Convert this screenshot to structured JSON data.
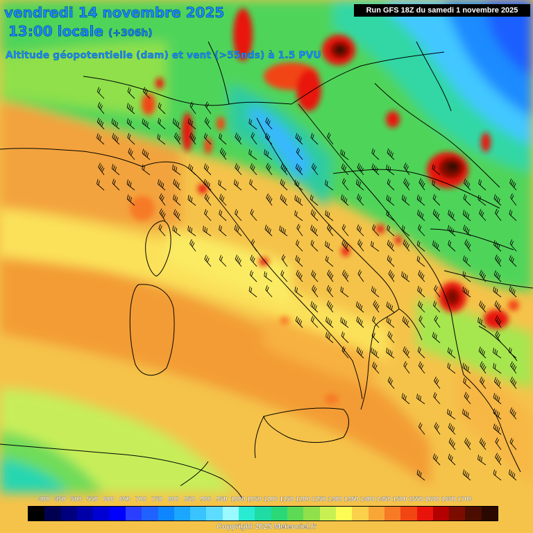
{
  "header": {
    "title_line1": "vendredi 14 novembre 2025",
    "title_line2": "13:00 locale",
    "lead_time": "(+306h)",
    "subtitle": "Altitude géopotentielle (dam) et vent (>55nds) à 1.5 PVU",
    "run_info": "Run GFS 18Z du samedi 1 novembre 2025"
  },
  "legend": {
    "labels": [
      "400",
      "450",
      "500",
      "550",
      "600",
      "650",
      "700",
      "750",
      "800",
      "850",
      "900",
      "950",
      "1000",
      "1050",
      "1100",
      "1150",
      "1200",
      "1250",
      "1300",
      "1350",
      "1400",
      "1450",
      "1500",
      "1550",
      "1600",
      "1650",
      "1700"
    ],
    "colors": [
      "#000000",
      "#000050",
      "#00007e",
      "#0000a8",
      "#0000d4",
      "#0000ff",
      "#2b3dff",
      "#1f62ff",
      "#0d86ff",
      "#1ba6ff",
      "#39c3ff",
      "#5ddcff",
      "#9afaff",
      "#29ebd2",
      "#1fdca5",
      "#2ad878",
      "#5cda55",
      "#8fe04b",
      "#c9f052",
      "#fdfc55",
      "#fbd04a",
      "#f9a638",
      "#f77a25",
      "#f24514",
      "#e8140b",
      "#b30000",
      "#7a0d00",
      "#4a0d00",
      "#2a0800"
    ]
  },
  "copyright": "Copyright 2025 Meteociel.fr",
  "colors": {
    "background": "#f5c34a",
    "title": "#1a8cff"
  }
}
